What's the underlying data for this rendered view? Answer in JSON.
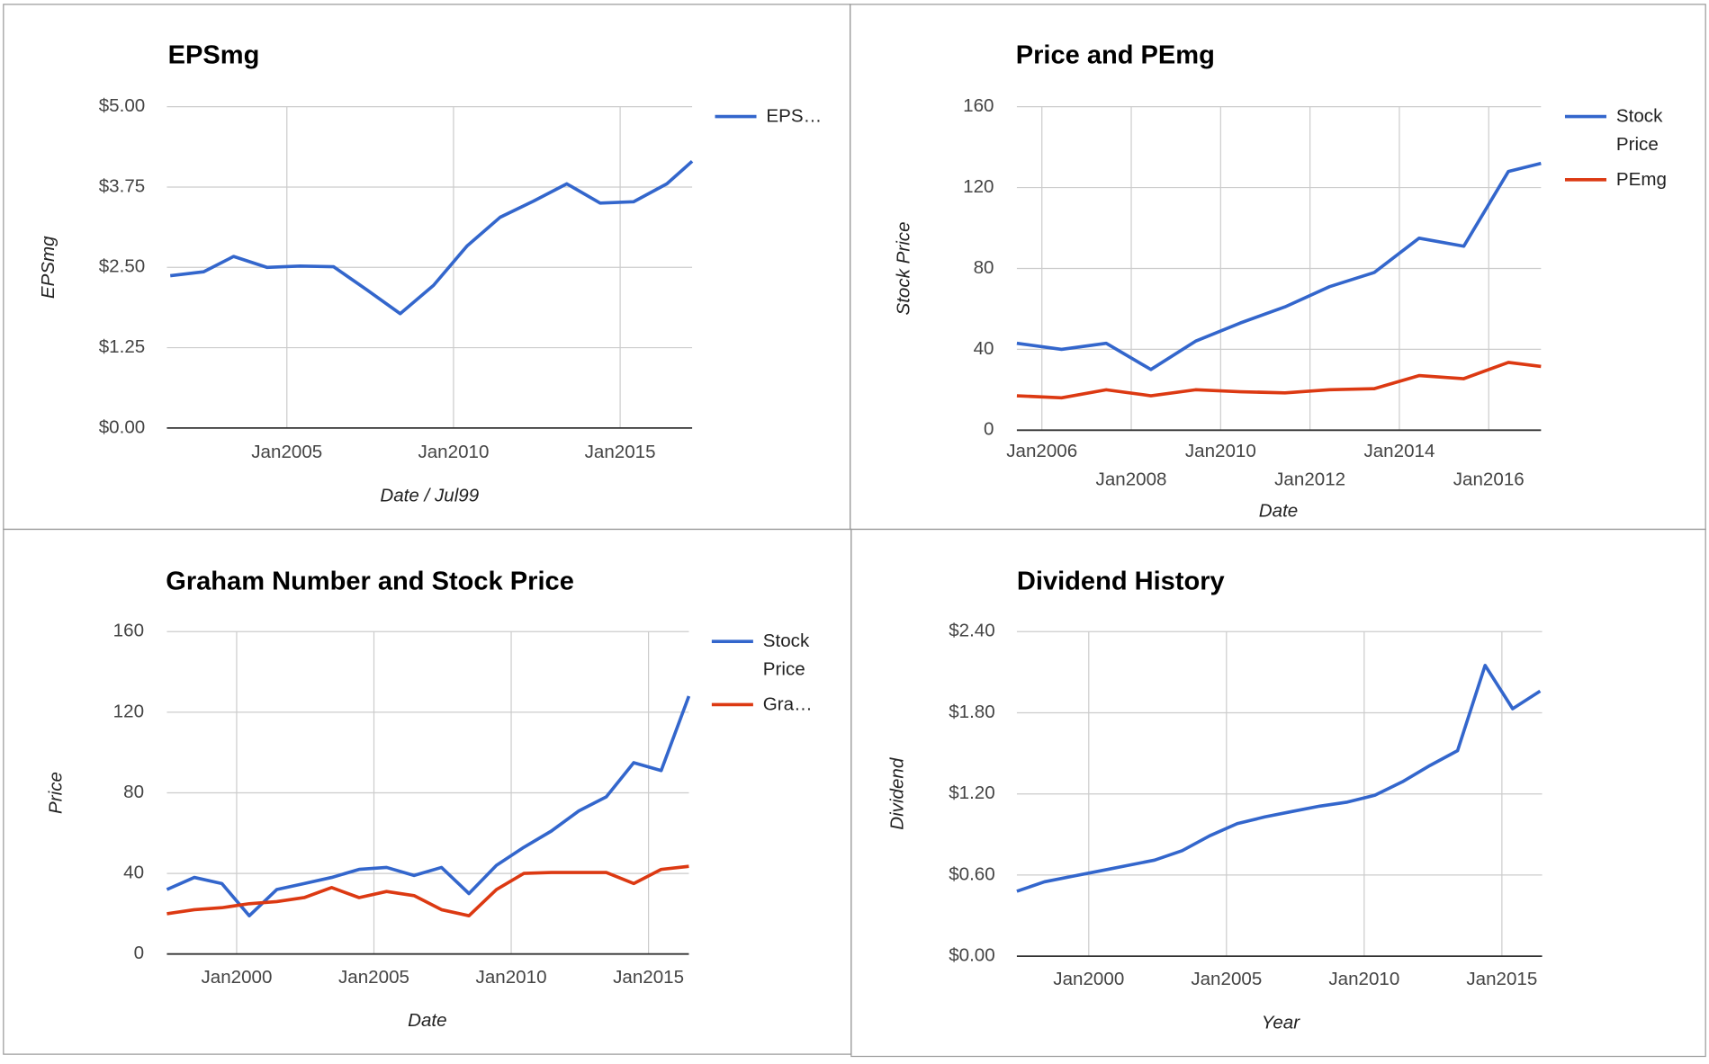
{
  "chart_data": [
    {
      "type": "line",
      "title": "EPSmg",
      "x_label": "Date / Jul99",
      "y_label": "EPSmg",
      "x": [
        2001.5,
        2002.5,
        2003.4,
        2004.4,
        2005.4,
        2006.4,
        2007.4,
        2008.4,
        2009.4,
        2010.4,
        2011.4,
        2012.4,
        2013.4,
        2014.4,
        2015.4,
        2016.4,
        2017.16
      ],
      "series": [
        {
          "name": "EPS…",
          "color": "#3366cc",
          "values": [
            2.37,
            2.43,
            2.67,
            2.5,
            2.52,
            2.51,
            2.15,
            1.78,
            2.22,
            2.83,
            3.28,
            3.53,
            3.8,
            3.5,
            3.52,
            3.8,
            4.15
          ]
        }
      ],
      "xlim": [
        2001.4,
        2017.16
      ],
      "ylim": [
        0,
        5
      ],
      "xticks": [
        {
          "value": 2005,
          "label": "Jan2005"
        },
        {
          "value": 2010,
          "label": "Jan2010"
        },
        {
          "value": 2015,
          "label": "Jan2015"
        }
      ],
      "yticks": [
        {
          "value": 0,
          "label": "$0.00"
        },
        {
          "value": 1.25,
          "label": "$1.25"
        },
        {
          "value": 2.5,
          "label": "$2.50"
        },
        {
          "value": 3.75,
          "label": "$3.75"
        },
        {
          "value": 5,
          "label": "$5.00"
        }
      ],
      "grid": true,
      "legend": "right"
    },
    {
      "type": "line",
      "title": "Price and PEmg",
      "x_label": "Date",
      "y_label": "Stock Price",
      "x": [
        2005.44,
        2006.44,
        2007.44,
        2008.44,
        2009.44,
        2010.44,
        2011.44,
        2012.44,
        2013.44,
        2014.44,
        2015.44,
        2016.44,
        2017.17
      ],
      "series": [
        {
          "name": "Stock Price",
          "color": "#3366cc",
          "values": [
            43,
            40,
            43,
            30,
            44,
            53,
            61,
            71,
            78,
            95,
            91,
            128,
            132
          ]
        },
        {
          "name": "PEmg",
          "color": "#dc3912",
          "values": [
            17,
            16,
            20,
            17,
            20,
            19,
            18.5,
            20,
            20.5,
            27,
            25.5,
            33.5,
            31.5
          ]
        }
      ],
      "xlim": [
        2005.44,
        2017.17
      ],
      "ylim": [
        0,
        160
      ],
      "xticks": [
        {
          "value": 2006,
          "label": "Jan2006"
        },
        {
          "value": 2008,
          "label": "Jan2008"
        },
        {
          "value": 2010,
          "label": "Jan2010"
        },
        {
          "value": 2012,
          "label": "Jan2012"
        },
        {
          "value": 2014,
          "label": "Jan2014"
        },
        {
          "value": 2016,
          "label": "Jan2016"
        }
      ],
      "yticks": [
        0,
        40,
        80,
        120,
        160
      ],
      "grid": true,
      "legend": "right"
    },
    {
      "type": "line",
      "title": "Graham Number and Stock Price",
      "x_label": "Date",
      "y_label": "Price",
      "x": [
        1997.46,
        1998.46,
        1999.46,
        2000.46,
        2001.46,
        2002.46,
        2003.46,
        2004.46,
        2005.46,
        2006.46,
        2007.46,
        2008.46,
        2009.46,
        2010.46,
        2011.46,
        2012.46,
        2013.46,
        2014.46,
        2015.46,
        2016.47
      ],
      "series": [
        {
          "name": "Stock Price",
          "color": "#3366cc",
          "values": [
            32,
            38,
            35,
            19,
            32,
            35,
            38,
            42,
            43,
            39,
            43,
            30,
            44,
            53,
            61,
            71,
            78,
            95,
            91,
            128
          ]
        },
        {
          "name": "Gra…",
          "color": "#dc3912",
          "values": [
            20,
            22,
            23,
            25,
            26,
            28,
            33,
            28,
            31,
            29,
            22,
            19,
            32,
            40,
            40.5,
            40.5,
            40.5,
            35,
            42,
            43.5
          ]
        }
      ],
      "xlim": [
        1997.46,
        2016.47
      ],
      "ylim": [
        0,
        160
      ],
      "xticks": [
        {
          "value": 2000,
          "label": "Jan2000"
        },
        {
          "value": 2005,
          "label": "Jan2005"
        },
        {
          "value": 2010,
          "label": "Jan2010"
        },
        {
          "value": 2015,
          "label": "Jan2015"
        }
      ],
      "yticks": [
        0,
        40,
        80,
        120,
        160
      ],
      "grid": true,
      "legend": "right"
    },
    {
      "type": "line",
      "title": "Dividend History",
      "x_label": "Year",
      "y_label": "Dividend",
      "x": [
        1997.39,
        1998.39,
        1999.39,
        2000.39,
        2001.39,
        2002.39,
        2003.39,
        2004.39,
        2005.39,
        2006.39,
        2007.39,
        2008.39,
        2009.39,
        2010.39,
        2011.39,
        2012.39,
        2013.39,
        2014.39,
        2015.39,
        2016.39
      ],
      "series": [
        {
          "name": "Dividend",
          "color": "#3366cc",
          "values": [
            0.48,
            0.55,
            0.59,
            0.63,
            0.67,
            0.71,
            0.78,
            0.89,
            0.98,
            1.03,
            1.07,
            1.11,
            1.14,
            1.19,
            1.29,
            1.41,
            1.52,
            2.15,
            1.83,
            1.96
          ]
        }
      ],
      "xlim": [
        1997.39,
        2016.46
      ],
      "ylim": [
        0,
        2.4
      ],
      "xticks": [
        {
          "value": 2000,
          "label": "Jan2000"
        },
        {
          "value": 2005,
          "label": "Jan2005"
        },
        {
          "value": 2010,
          "label": "Jan2010"
        },
        {
          "value": 2015,
          "label": "Jan2015"
        }
      ],
      "yticks": [
        {
          "value": 0,
          "label": "$0.00"
        },
        {
          "value": 0.6,
          "label": "$0.60"
        },
        {
          "value": 1.2,
          "label": "$1.20"
        },
        {
          "value": 1.8,
          "label": "$1.80"
        },
        {
          "value": 2.4,
          "label": "$2.40"
        }
      ],
      "grid": true,
      "legend": "none"
    }
  ]
}
